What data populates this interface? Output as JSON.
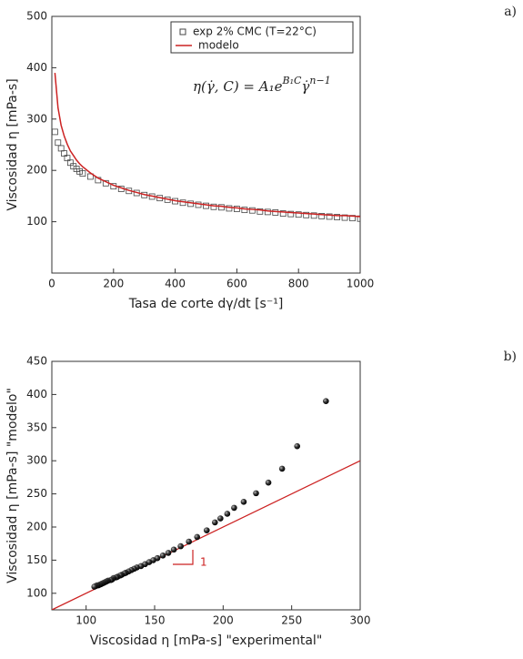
{
  "chart_data": [
    {
      "type": "scatter",
      "panel_label": "a)",
      "x_label": "Tasa de corte dγ/dt [s⁻¹]",
      "y_label": "Viscosidad η [mPa-s]",
      "x": [
        10,
        20,
        30,
        40,
        50,
        60,
        70,
        80,
        90,
        100,
        125,
        150,
        175,
        200,
        225,
        250,
        275,
        300,
        325,
        350,
        375,
        400,
        425,
        450,
        475,
        500,
        525,
        550,
        575,
        600,
        625,
        650,
        675,
        700,
        725,
        750,
        775,
        800,
        825,
        850,
        875,
        900,
        925,
        950,
        975,
        1000
      ],
      "series": [
        {
          "name": "exp 2% CMC (T=22°C)",
          "mode": "markers",
          "color": "#444444",
          "values": [
            275,
            254,
            243,
            233,
            224,
            215,
            208,
            203,
            198,
            194,
            188,
            181,
            175,
            169,
            164,
            160,
            156,
            152,
            149,
            146,
            143,
            140,
            137,
            135,
            133,
            131,
            129,
            128,
            126,
            125,
            123,
            122,
            120,
            119,
            118,
            116,
            115,
            114,
            113,
            112,
            111,
            110,
            109,
            108,
            107,
            106
          ]
        },
        {
          "name": "modelo",
          "mode": "lines",
          "color": "#cc2222",
          "values": [
            390,
            322,
            288,
            267,
            251,
            238,
            229,
            220,
            213,
            207,
            195,
            185,
            178,
            171,
            166,
            161,
            157,
            153,
            150,
            147,
            144,
            141,
            139,
            137,
            135,
            133,
            131,
            130,
            128,
            127,
            125,
            124,
            123,
            121,
            120,
            119,
            118,
            117,
            116,
            115,
            114,
            113,
            112,
            112,
            111,
            110
          ]
        }
      ],
      "xlim": [
        0,
        1000
      ],
      "xticks": [
        0,
        200,
        400,
        600,
        800,
        1000
      ],
      "ylim": [
        0,
        500
      ],
      "yticks": [
        100,
        200,
        300,
        400,
        500
      ],
      "annotation": "η(γ̇, C) = A₁e",
      "annotation_exponent": "B₁C",
      "annotation_tail": "γ̇",
      "annotation_tail_exponent": "n−1"
    },
    {
      "type": "scatter",
      "panel_label": "b)",
      "x_label": "Viscosidad η [mPa-s] \"experimental\"",
      "y_label": "Viscosidad η [mPa-s] \"modelo\"",
      "x": [
        275,
        254,
        243,
        233,
        224,
        215,
        208,
        203,
        198,
        194,
        188,
        181,
        175,
        169,
        164,
        160,
        156,
        152,
        149,
        146,
        143,
        140,
        137,
        135,
        133,
        131,
        129,
        128,
        126,
        125,
        123,
        122,
        120,
        119,
        118,
        116,
        115,
        114,
        113,
        112,
        111,
        110,
        109,
        108,
        107,
        106
      ],
      "series": [
        {
          "name": "modelo",
          "mode": "spheres",
          "color": "#111111",
          "values": [
            390,
            322,
            288,
            267,
            251,
            238,
            229,
            220,
            213,
            207,
            195,
            185,
            178,
            171,
            166,
            161,
            157,
            153,
            150,
            147,
            144,
            141,
            139,
            137,
            135,
            133,
            131,
            130,
            128,
            127,
            125,
            124,
            123,
            121,
            120,
            119,
            118,
            117,
            116,
            115,
            114,
            113,
            112,
            112,
            111,
            110
          ]
        }
      ],
      "identity_line": true,
      "identity_color": "#cc2222",
      "xlim": [
        75,
        300
      ],
      "xticks": [
        100,
        150,
        200,
        250,
        300
      ],
      "ylim": [
        75,
        450
      ],
      "yticks": [
        100,
        150,
        200,
        250,
        300,
        350,
        400,
        450
      ],
      "annotation": "1"
    }
  ]
}
